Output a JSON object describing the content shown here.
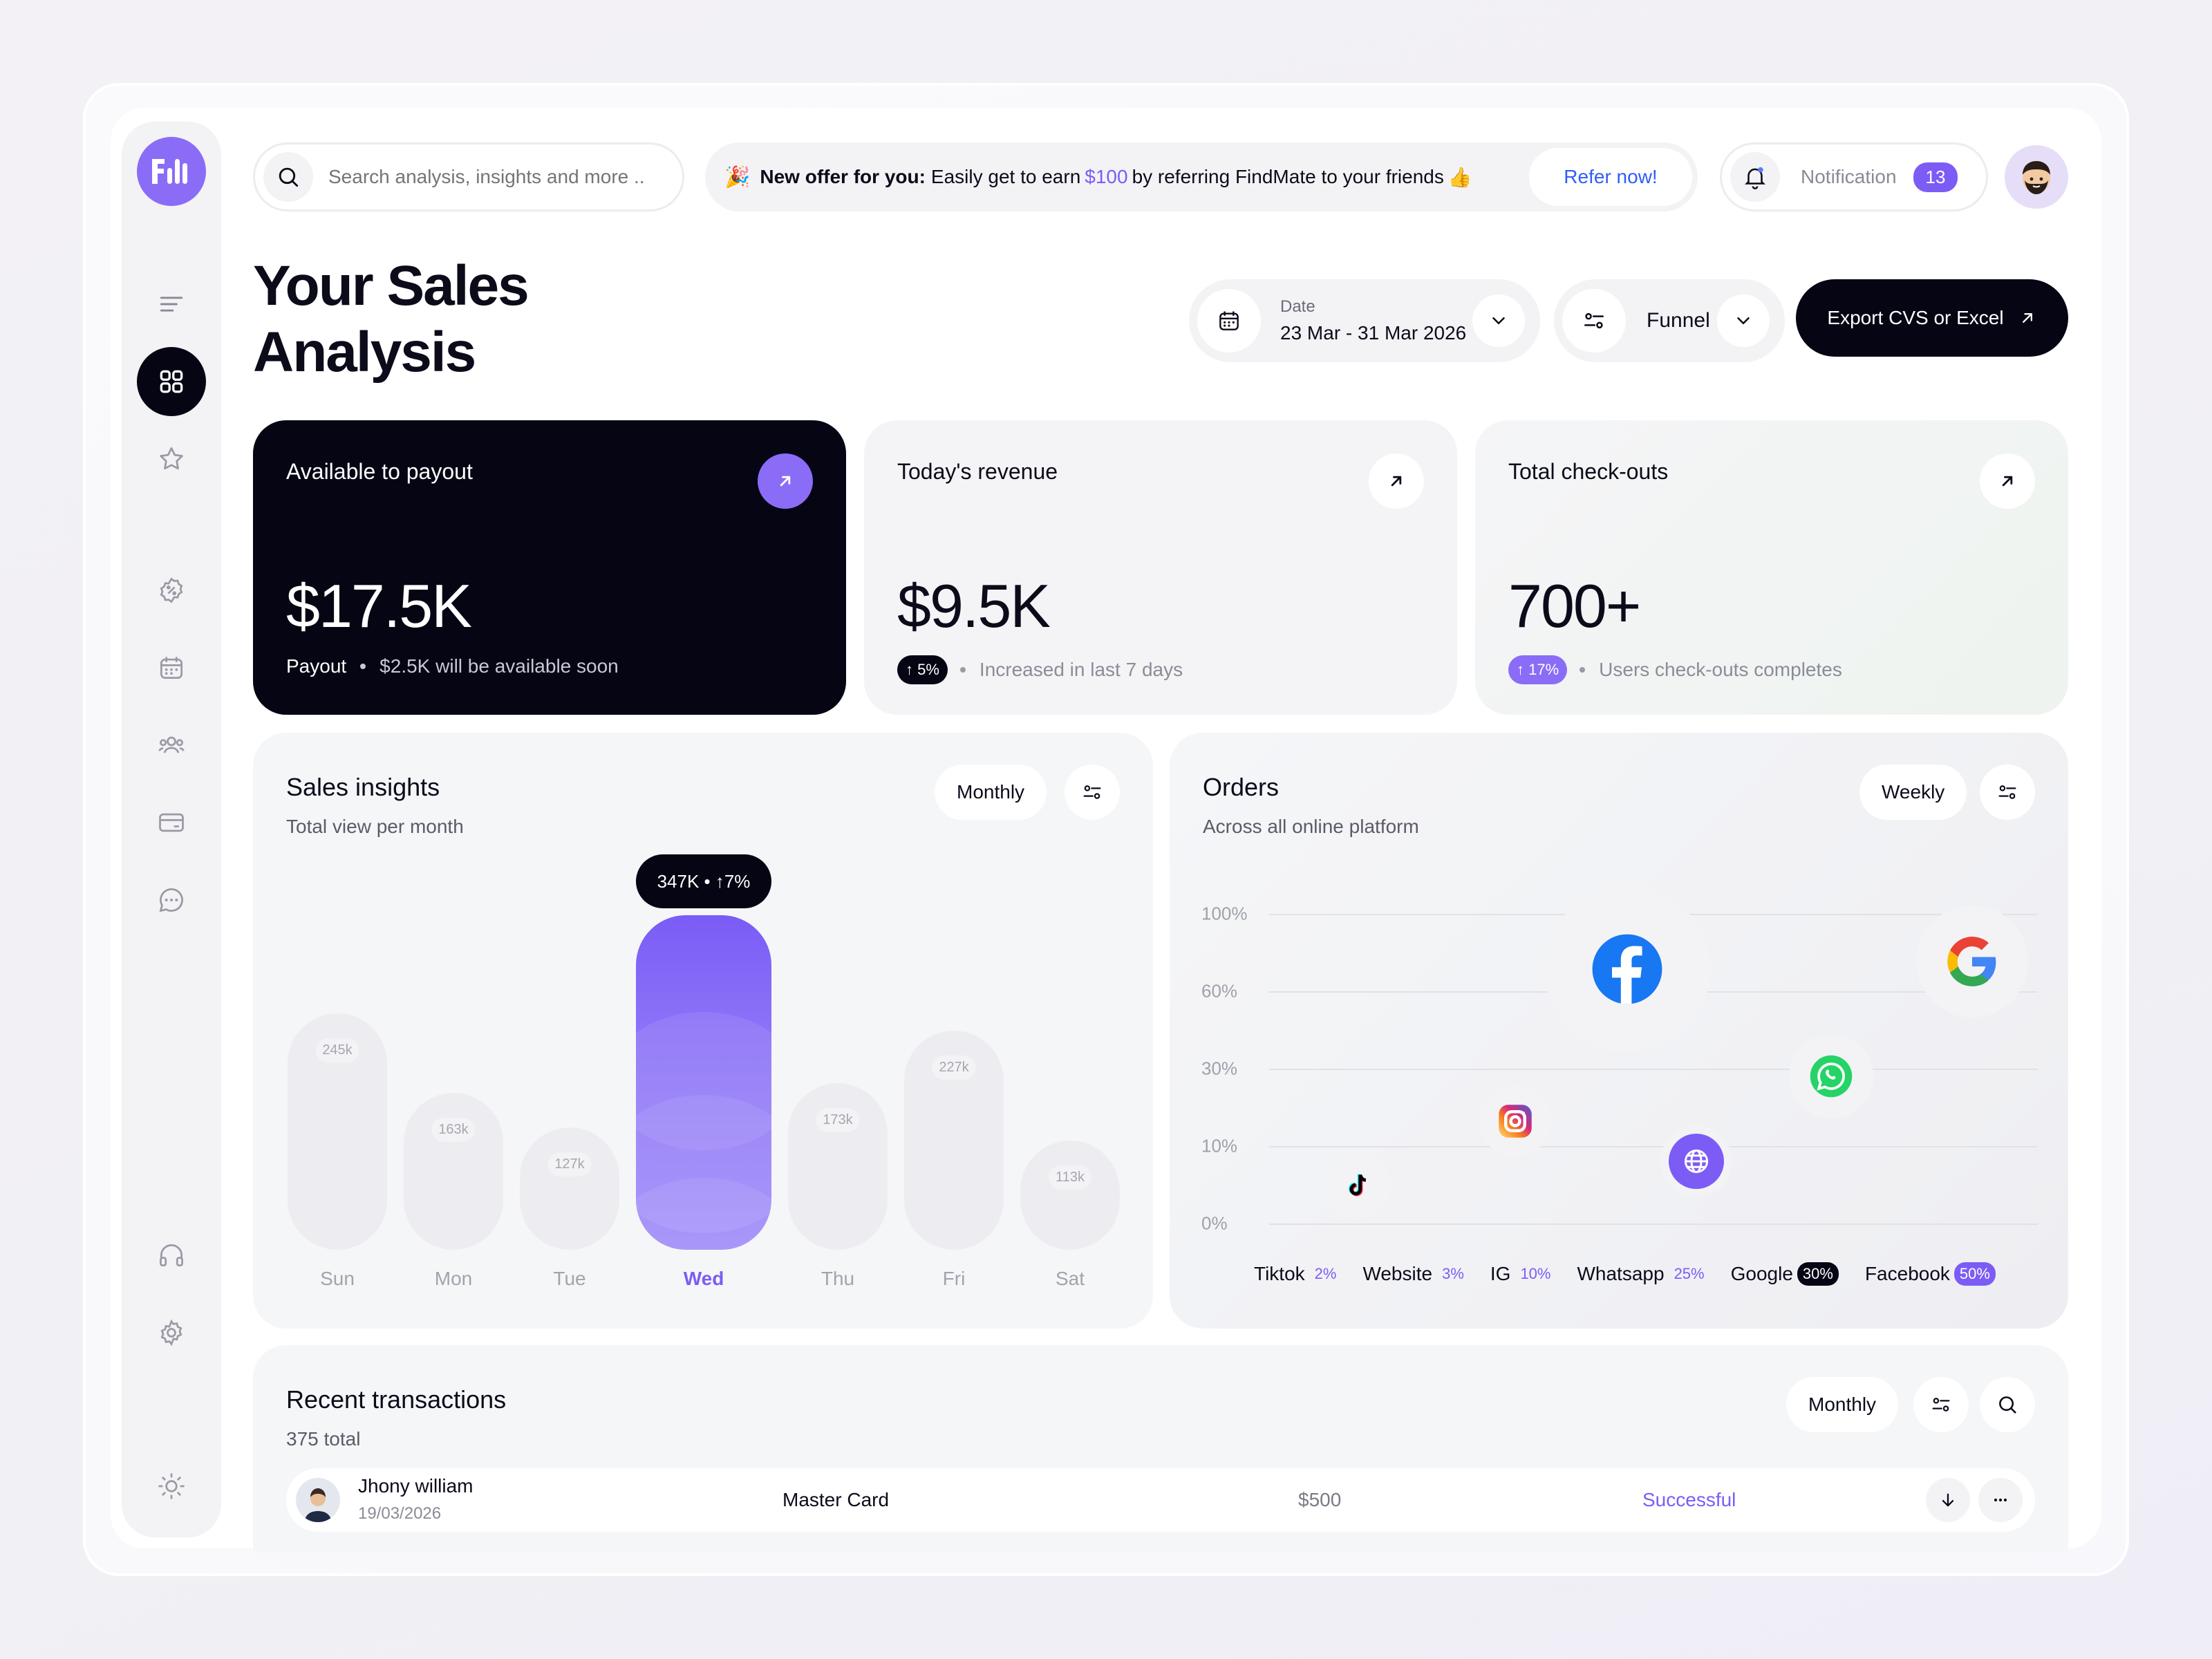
{
  "brand": {
    "logo_text": "FM",
    "accent": "#7c5cf5",
    "dark": "#050514"
  },
  "sidebar": {
    "items": [
      {
        "name": "menu-icon"
      },
      {
        "name": "dashboard-icon",
        "active": true
      },
      {
        "name": "star-icon"
      },
      {
        "name": "discount-icon"
      },
      {
        "name": "calendar-icon"
      },
      {
        "name": "users-icon"
      },
      {
        "name": "card-icon"
      },
      {
        "name": "chat-icon"
      },
      {
        "name": "headphones-icon"
      },
      {
        "name": "settings-icon"
      },
      {
        "name": "sun-icon"
      }
    ]
  },
  "search": {
    "placeholder": "Search analysis, insights and more .."
  },
  "offer": {
    "emoji": "🎉",
    "lead": "New offer for you:",
    "text_before": "Easily get to earn",
    "amount": "$100",
    "text_after": "by referring FindMate to your friends",
    "emoji_end": "👍",
    "cta": "Refer now!"
  },
  "notification": {
    "label": "Notification",
    "count": "13"
  },
  "page": {
    "title": "Your Sales Analysis"
  },
  "filters": {
    "date_label": "Date",
    "date_value": "23 Mar - 31 Mar 2026",
    "funnel_label": "Funnel",
    "export_label": "Export CVS or Excel"
  },
  "cards": [
    {
      "title": "Available to payout",
      "value": "$17.5K",
      "foot_strong": "Payout",
      "foot": "$2.5K will be available soon"
    },
    {
      "title": "Today's revenue",
      "value": "$9.5K",
      "badge": "↑ 5%",
      "foot": "Increased in last 7 days"
    },
    {
      "title": "Total check-outs",
      "value": "700+",
      "badge": "↑ 17%",
      "foot": "Users check-outs completes"
    }
  ],
  "insights": {
    "title": "Sales insights",
    "subtitle": "Total view per month",
    "period": "Monthly",
    "tooltip": "347K • ↑7%",
    "chart_data": {
      "type": "bar",
      "categories": [
        "Sun",
        "Mon",
        "Tue",
        "Wed",
        "Thu",
        "Fri",
        "Sat"
      ],
      "labels": [
        "245k",
        "163k",
        "127k",
        "347K",
        "173k",
        "227k",
        "113k"
      ],
      "values": [
        245,
        163,
        127,
        347,
        173,
        227,
        113
      ],
      "highlight": "Wed",
      "highlight_change": "↑7%"
    }
  },
  "orders": {
    "title": "Orders",
    "subtitle": "Across all online platform",
    "period": "Weekly",
    "y_ticks": [
      "100%",
      "60%",
      "30%",
      "10%",
      "0%"
    ],
    "chart_data": {
      "type": "scatter",
      "y_ticks": [
        "100%",
        "60%",
        "30%",
        "10%",
        "0%"
      ],
      "points": [
        {
          "name": "Tiktok",
          "value": 2,
          "icon": "tiktok-icon"
        },
        {
          "name": "Website",
          "value": 3,
          "icon": "globe-icon"
        },
        {
          "name": "IG",
          "value": 10,
          "icon": "instagram-icon"
        },
        {
          "name": "Whatsapp",
          "value": 25,
          "icon": "whatsapp-icon"
        },
        {
          "name": "Google",
          "value": 30,
          "icon": "google-icon"
        },
        {
          "name": "Facebook",
          "value": 50,
          "icon": "facebook-icon"
        }
      ]
    },
    "legend": [
      {
        "name": "Tiktok",
        "pct": "2%"
      },
      {
        "name": "Website",
        "pct": "3%"
      },
      {
        "name": "IG",
        "pct": "10%"
      },
      {
        "name": "Whatsapp",
        "pct": "25%"
      },
      {
        "name": "Google",
        "pct": "30%"
      },
      {
        "name": "Facebook",
        "pct": "50%"
      }
    ]
  },
  "transactions": {
    "title": "Recent transactions",
    "total": "375 total",
    "period": "Monthly",
    "rows": [
      {
        "name": "Jhony william",
        "date": "19/03/2026",
        "method": "Master Card",
        "amount": "$500",
        "status": "Successful"
      }
    ]
  }
}
